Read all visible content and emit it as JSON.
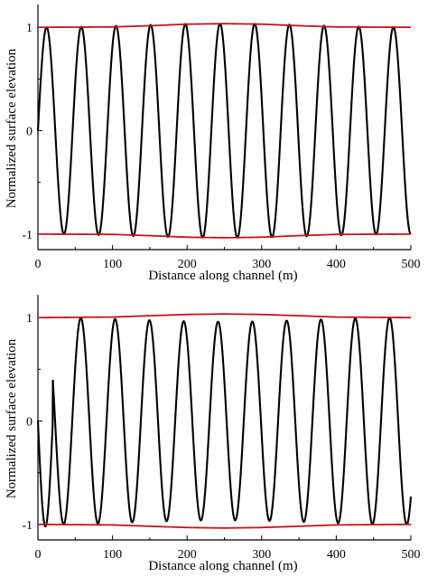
{
  "chart_data": [
    {
      "type": "line",
      "xlabel": "Distance along channel (m)",
      "ylabel": "Normalized surface elevation",
      "xlim": [
        0,
        500
      ],
      "ylim": [
        -1.15,
        1.22
      ],
      "xticks": [
        0,
        100,
        200,
        300,
        400,
        500
      ],
      "yticks": [
        -1,
        0,
        1
      ],
      "series": [
        {
          "color": "#000000",
          "wave": {
            "amplitude": 1.0,
            "wavelength": 46.5,
            "phase_x": 0,
            "form": "sin"
          },
          "envelope_bump": 0.035
        },
        {
          "color": "#c0161c",
          "values_upper": [
            [
              0,
              1.0
            ],
            [
              100,
              1.003
            ],
            [
              150,
              1.015
            ],
            [
              200,
              1.03
            ],
            [
              250,
              1.035
            ],
            [
              300,
              1.03
            ],
            [
              350,
              1.015
            ],
            [
              400,
              1.003
            ],
            [
              500,
              1.0
            ]
          ],
          "values_lower": [
            [
              0,
              -1.0
            ],
            [
              100,
              -1.003
            ],
            [
              150,
              -1.015
            ],
            [
              200,
              -1.03
            ],
            [
              250,
              -1.035
            ],
            [
              300,
              -1.03
            ],
            [
              350,
              -1.015
            ],
            [
              400,
              -1.003
            ],
            [
              500,
              -1.0
            ]
          ]
        }
      ]
    },
    {
      "type": "line",
      "xlabel": "Distance along channel (m)",
      "ylabel": "Normalized surface elevation",
      "xlim": [
        0,
        500
      ],
      "ylim": [
        -1.15,
        1.22
      ],
      "xticks": [
        0,
        100,
        200,
        300,
        400,
        500
      ],
      "yticks": [
        -1,
        0,
        1
      ],
      "series": [
        {
          "color": "#000000",
          "wave": {
            "amplitude": 1.0,
            "wavelength": 46.0,
            "phase_x": 0,
            "form": "sin"
          },
          "envelope_dip": 0.04,
          "initial_transient": true
        },
        {
          "color": "#c0161c",
          "values_upper": [
            [
              0,
              1.0
            ],
            [
              100,
              1.005
            ],
            [
              150,
              1.018
            ],
            [
              200,
              1.03
            ],
            [
              250,
              1.035
            ],
            [
              300,
              1.03
            ],
            [
              350,
              1.018
            ],
            [
              400,
              1.005
            ],
            [
              500,
              1.0
            ]
          ],
          "values_lower": [
            [
              0,
              -1.0
            ],
            [
              100,
              -1.005
            ],
            [
              150,
              -1.018
            ],
            [
              200,
              -1.03
            ],
            [
              250,
              -1.035
            ],
            [
              300,
              -1.03
            ],
            [
              350,
              -1.018
            ],
            [
              400,
              -1.005
            ],
            [
              500,
              -1.0
            ]
          ]
        }
      ]
    }
  ]
}
